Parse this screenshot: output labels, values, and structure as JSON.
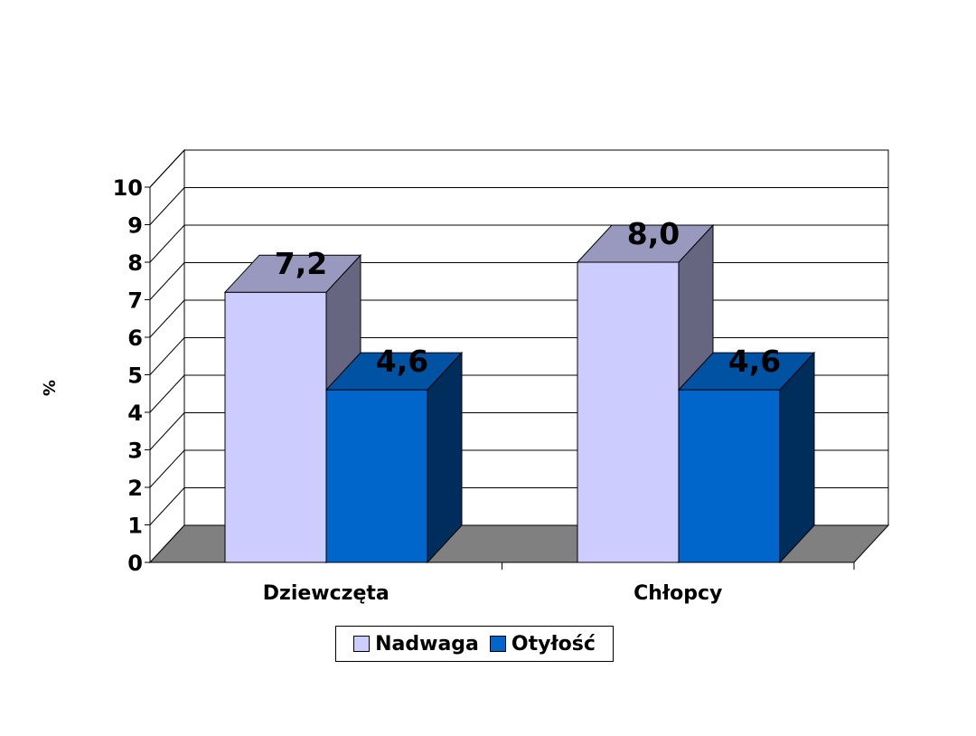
{
  "chart_data": {
    "type": "bar",
    "categories": [
      "Dziewczęta",
      "Chłopcy"
    ],
    "series": [
      {
        "name": "Nadwaga",
        "values": [
          7.2,
          8.0
        ],
        "labels": [
          "7,2",
          "8,0"
        ],
        "color": "#CCCCFF"
      },
      {
        "name": "Otyłość",
        "values": [
          4.6,
          4.6
        ],
        "labels": [
          "4,6",
          "4,6"
        ],
        "color": "#0066CC"
      }
    ],
    "ylabel": "%",
    "ylim": [
      0,
      10
    ],
    "yticks": [
      "0",
      "1",
      "2",
      "3",
      "4",
      "5",
      "6",
      "7",
      "8",
      "9",
      "10"
    ],
    "grid": true,
    "three_d": true,
    "legend_position": "bottom"
  }
}
